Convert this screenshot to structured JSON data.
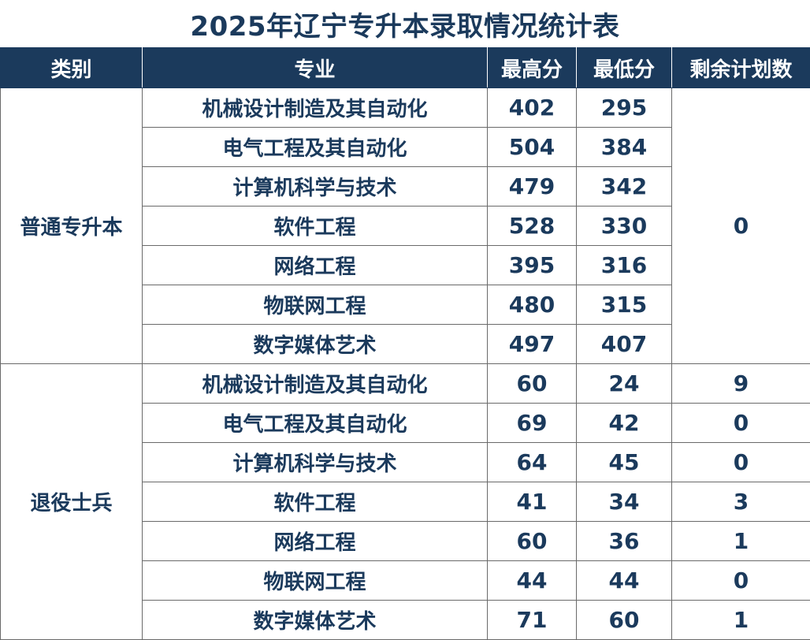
{
  "title": "2025年辽宁专升本录取情况统计表",
  "headers": {
    "category": "类别",
    "major": "专业",
    "highest": "最高分",
    "lowest": "最低分",
    "remaining": "剩余计划数"
  },
  "groups": [
    {
      "category": "普通专升本",
      "remaining_merged": "0",
      "rows": [
        {
          "major": "机械设计制造及其自动化",
          "highest": "402",
          "lowest": "295"
        },
        {
          "major": "电气工程及其自动化",
          "highest": "504",
          "lowest": "384"
        },
        {
          "major": "计算机科学与技术",
          "highest": "479",
          "lowest": "342"
        },
        {
          "major": "软件工程",
          "highest": "528",
          "lowest": "330"
        },
        {
          "major": "网络工程",
          "highest": "395",
          "lowest": "316"
        },
        {
          "major": "物联网工程",
          "highest": "480",
          "lowest": "315"
        },
        {
          "major": "数字媒体艺术",
          "highest": "497",
          "lowest": "407"
        }
      ]
    },
    {
      "category": "退役士兵",
      "rows": [
        {
          "major": "机械设计制造及其自动化",
          "highest": "60",
          "lowest": "24",
          "remaining": "9"
        },
        {
          "major": "电气工程及其自动化",
          "highest": "69",
          "lowest": "42",
          "remaining": "0"
        },
        {
          "major": "计算机科学与技术",
          "highest": "64",
          "lowest": "45",
          "remaining": "0"
        },
        {
          "major": "软件工程",
          "highest": "41",
          "lowest": "34",
          "remaining": "3"
        },
        {
          "major": "网络工程",
          "highest": "60",
          "lowest": "36",
          "remaining": "1"
        },
        {
          "major": "物联网工程",
          "highest": "44",
          "lowest": "44",
          "remaining": "0"
        },
        {
          "major": "数字媒体艺术",
          "highest": "71",
          "lowest": "60",
          "remaining": "1"
        }
      ]
    }
  ],
  "colors": {
    "header_bg": "#1b3a5c",
    "header_text": "#ffffff",
    "body_text": "#1b3a5c",
    "grid_line": "#6a6a6a"
  }
}
